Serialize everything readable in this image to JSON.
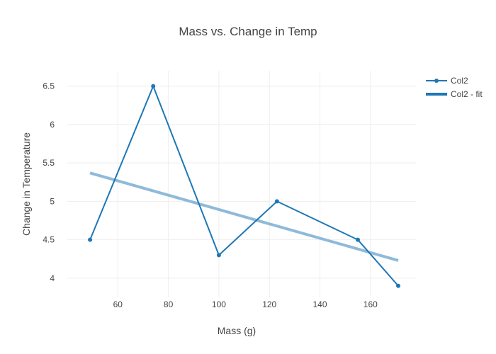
{
  "chart_data": {
    "type": "line",
    "title": "Mass vs. Change in Temp",
    "xlabel": "Mass (g)",
    "ylabel": "Change in Temperature",
    "xlim": [
      40,
      178
    ],
    "ylim": [
      3.75,
      6.7
    ],
    "xticks": [
      60,
      80,
      100,
      120,
      140,
      160
    ],
    "yticks": [
      4,
      4.5,
      5,
      5.5,
      6,
      6.5
    ],
    "grid": true,
    "legend_position": "top-right",
    "series": [
      {
        "name": "Col2",
        "kind": "lines+markers",
        "color": "#1f77b4",
        "x": [
          49,
          74,
          100,
          123,
          155,
          171
        ],
        "y": [
          4.5,
          6.5,
          4.3,
          5.0,
          4.5,
          3.9
        ]
      },
      {
        "name": "Col2 - fit",
        "kind": "line",
        "color": "#8fbad9",
        "x": [
          49,
          171
        ],
        "y": [
          5.37,
          4.23
        ]
      }
    ]
  }
}
